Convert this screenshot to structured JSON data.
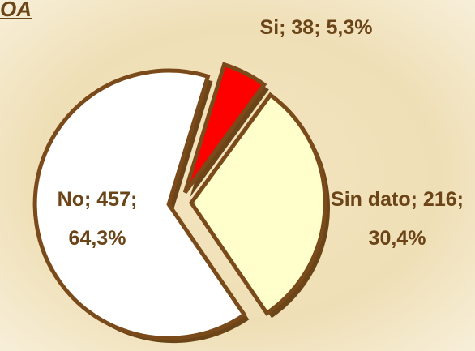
{
  "chart_data": {
    "type": "pie",
    "title": "OA",
    "categories": [
      "Si",
      "Sin dato",
      "No"
    ],
    "values": [
      38,
      216,
      457
    ],
    "value_labels": [
      "Si; 38; 5,3%",
      "Sin dato; 216; 30,4%",
      "No; 457; 64,3%"
    ],
    "colors": [
      "#ff0000",
      "#ffffcc",
      "#ffffff"
    ]
  }
}
